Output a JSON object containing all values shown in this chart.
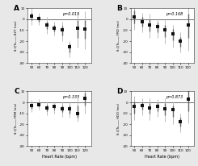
{
  "panels": [
    {
      "label": "A",
      "pvalue": "p=0.015",
      "ylabel": "δ-QTcₑₙₐₑ₉ BZT (ms)",
      "xlabel": "Heart Rate (bpm)",
      "x": [
        50,
        60,
        70,
        80,
        90,
        100,
        110,
        120
      ],
      "y": [
        3,
        1,
        -5,
        -8,
        -10,
        -25,
        -8,
        -9
      ],
      "yerr_lo": [
        8,
        6,
        8,
        7,
        10,
        10,
        18,
        18
      ],
      "yerr_hi": [
        7,
        5,
        7,
        6,
        8,
        5,
        14,
        16
      ],
      "ci_lo": [
        4,
        3,
        4,
        3,
        5,
        5,
        9,
        9
      ],
      "ci_hi": [
        3,
        2,
        3,
        3,
        4,
        3,
        7,
        8
      ],
      "ylim": [
        -40,
        10
      ],
      "yticks": [
        -40,
        -30,
        -20,
        -10,
        0,
        10
      ]
    },
    {
      "label": "B",
      "pvalue": "p=0.168",
      "ylabel": "δ-QTcₑₙₐₑ₉ FRD (ms)",
      "xlabel": "Heart Rate (bpm)",
      "x": [
        50,
        60,
        70,
        80,
        90,
        100,
        110,
        120
      ],
      "y": [
        2,
        -2,
        -5,
        -7,
        -10,
        -13,
        -20,
        -5
      ],
      "yerr_lo": [
        12,
        10,
        12,
        10,
        12,
        13,
        10,
        24
      ],
      "yerr_hi": [
        12,
        8,
        10,
        8,
        10,
        8,
        8,
        20
      ],
      "ci_lo": [
        6,
        5,
        6,
        5,
        6,
        6,
        5,
        12
      ],
      "ci_hi": [
        6,
        4,
        5,
        4,
        5,
        4,
        4,
        10
      ],
      "ylim": [
        -40,
        10
      ],
      "yticks": [
        -40,
        -30,
        -20,
        -10,
        0,
        10
      ]
    },
    {
      "label": "C",
      "pvalue": "p=0.335",
      "ylabel": "δ-QTcₑₙₐₑ₉ FRM (ms)",
      "xlabel": "Heart Rate (bpm)",
      "x": [
        50,
        60,
        70,
        80,
        90,
        100,
        110,
        120
      ],
      "y": [
        -3,
        -2,
        -5,
        -4,
        -6,
        -6,
        -10,
        4
      ],
      "yerr_lo": [
        6,
        5,
        7,
        6,
        7,
        8,
        8,
        14
      ],
      "yerr_hi": [
        5,
        5,
        6,
        5,
        6,
        6,
        14,
        10
      ],
      "ci_lo": [
        3,
        2,
        3,
        3,
        3,
        4,
        4,
        7
      ],
      "ci_hi": [
        2,
        2,
        3,
        2,
        3,
        3,
        7,
        5
      ],
      "ylim": [
        -40,
        10
      ],
      "yticks": [
        -40,
        -30,
        -20,
        -10,
        0,
        10
      ]
    },
    {
      "label": "D",
      "pvalue": "p=0.873",
      "ylabel": "δ-QTcₑₙₐₑ₉ HDO (ms)",
      "xlabel": "Heart Rate (bpm)",
      "x": [
        50,
        60,
        70,
        80,
        90,
        100,
        110,
        120
      ],
      "y": [
        -4,
        -3,
        -5,
        -4,
        -6,
        -7,
        -18,
        3
      ],
      "yerr_lo": [
        12,
        9,
        11,
        9,
        12,
        13,
        9,
        22
      ],
      "yerr_hi": [
        10,
        7,
        9,
        7,
        10,
        8,
        8,
        20
      ],
      "ci_lo": [
        6,
        4,
        5,
        4,
        6,
        6,
        4,
        11
      ],
      "ci_hi": [
        5,
        3,
        4,
        3,
        5,
        4,
        4,
        10
      ],
      "ylim": [
        -40,
        10
      ],
      "yticks": [
        -40,
        -30,
        -20,
        -10,
        0,
        10
      ]
    }
  ],
  "xticks": [
    50,
    60,
    70,
    80,
    90,
    100,
    110,
    120
  ],
  "marker_color": "#111111",
  "error_color_outer": "#bbbbbb",
  "error_color_inner": "#666666",
  "bg_color": "#e8e8e8",
  "panel_bg": "#ffffff"
}
